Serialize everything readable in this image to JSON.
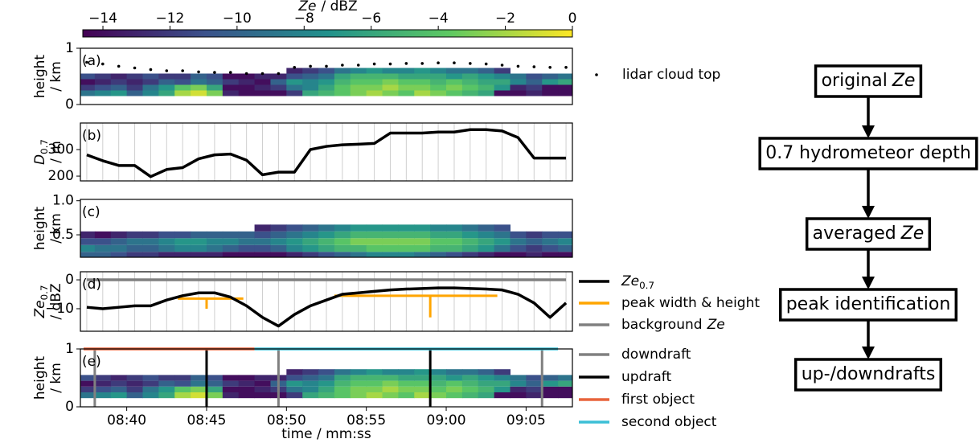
{
  "chart_data": [
    {
      "type": "colorbar",
      "label_italic": "Ze",
      "label": "/ dBZ",
      "colormap": "viridis",
      "xlim": [
        -14.6,
        0
      ],
      "xticks": [
        {
          "value": -14,
          "label": "−14"
        },
        {
          "value": -12,
          "label": "−12"
        },
        {
          "value": -10,
          "label": "−10"
        },
        {
          "value": -8,
          "label": "−8"
        },
        {
          "value": -6,
          "label": "−6"
        },
        {
          "value": -4,
          "label": "−4"
        },
        {
          "value": -2,
          "label": "−2"
        },
        0
      ]
    },
    {
      "type": "heatmap",
      "panel": "(a)",
      "ylabel": "height",
      "ylabel_unit": "/ km",
      "xlim": [
        37.1,
        67.9
      ],
      "ylim": [
        0,
        1
      ],
      "yticks": [
        0,
        1
      ],
      "x": [
        37.5,
        38.5,
        39.5,
        40.5,
        41.5,
        42.5,
        43.5,
        44.5,
        45.5,
        46.5,
        47.5,
        48.5,
        49.5,
        50.5,
        51.5,
        52.5,
        53.5,
        54.5,
        55.5,
        56.5,
        57.5,
        58.5,
        59.5,
        60.5,
        61.5,
        62.5,
        63.5,
        64.5,
        65.5,
        66.5,
        67.5
      ],
      "y_edges": [
        0.15,
        0.25,
        0.35,
        0.45,
        0.55,
        0.65
      ],
      "z": [
        [
          -9,
          -8,
          -7,
          -10,
          -8,
          -6,
          -2,
          -1,
          -3,
          -13,
          -14,
          -14,
          -14,
          -12,
          -6,
          -5,
          -4,
          -3,
          -2,
          -3,
          -4,
          -2,
          -3,
          -4,
          -5,
          -6,
          -14,
          -14,
          -13,
          -14,
          -14
        ],
        [
          -12,
          -11,
          -10,
          -12,
          -9,
          -7,
          -4,
          -3,
          -6,
          -14,
          -14,
          -13,
          -12,
          -9,
          -8,
          -6,
          -4,
          -3,
          -3,
          -2,
          -3,
          -3,
          -4,
          -3,
          -4,
          -5,
          -7,
          -13,
          -12,
          -14,
          -14
        ],
        [
          -14,
          -13,
          -12,
          -13,
          -12,
          -10,
          -11,
          -9,
          -10,
          -12,
          -13,
          -14,
          -10,
          -7,
          -8,
          -7,
          -5,
          -4,
          -4,
          -3,
          -4,
          -4,
          -5,
          -4,
          -5,
          -6,
          -6,
          -8,
          -10,
          -7,
          -6
        ],
        [
          -11,
          -12,
          -13,
          -12,
          -11,
          -12,
          -12,
          -10,
          -11,
          -14,
          -14,
          -13,
          -13,
          -11,
          -10,
          -9,
          -6,
          -5,
          -5,
          -5,
          -6,
          -6,
          -6,
          -7,
          -6,
          -7,
          -8,
          -9,
          -11,
          -10,
          -9
        ],
        [
          null,
          null,
          null,
          null,
          null,
          null,
          null,
          null,
          null,
          null,
          null,
          null,
          null,
          -13,
          -12,
          -11,
          -9,
          -8,
          -7,
          -8,
          -8,
          -7,
          -8,
          -9,
          -9,
          -10,
          -12,
          null,
          null,
          null,
          null
        ]
      ],
      "series": [
        {
          "name": "lidar cloud top",
          "color": "#000000",
          "values": [
            0.75,
            0.72,
            0.68,
            0.65,
            0.62,
            0.6,
            0.6,
            0.58,
            0.57,
            0.57,
            0.55,
            0.55,
            0.55,
            0.66,
            0.68,
            0.68,
            0.7,
            0.7,
            0.72,
            0.72,
            0.73,
            0.73,
            0.74,
            0.74,
            0.73,
            0.72,
            0.7,
            0.68,
            0.67,
            0.66,
            0.66
          ]
        }
      ]
    },
    {
      "type": "line",
      "panel": "(b)",
      "ylabel_italic": "D",
      "ylabel_sub": "0.7",
      "ylabel_unit": "/ m",
      "xlim": [
        37.1,
        67.9
      ],
      "ylim": [
        182,
        400
      ],
      "yticks": [
        200,
        300
      ],
      "x": [
        37.5,
        38.5,
        39.5,
        40.5,
        41.5,
        42.5,
        43.5,
        44.5,
        45.5,
        46.5,
        47.5,
        48.5,
        49.5,
        50.5,
        51.5,
        52.5,
        53.5,
        54.5,
        55.5,
        56.5,
        57.5,
        58.5,
        59.5,
        60.5,
        61.5,
        62.5,
        63.5,
        64.5,
        65.5,
        66.5,
        67.5
      ],
      "series": [
        {
          "color": "#000000",
          "values": [
            280,
            258,
            240,
            240,
            198,
            225,
            232,
            265,
            280,
            283,
            260,
            205,
            215,
            215,
            300,
            312,
            318,
            320,
            323,
            362,
            362,
            362,
            366,
            366,
            375,
            375,
            370,
            345,
            268,
            268,
            268
          ]
        }
      ]
    },
    {
      "type": "heatmap",
      "panel": "(c)",
      "ylabel": "height",
      "ylabel_unit": "/ km",
      "xlim": [
        37.1,
        67.9
      ],
      "ylim": [
        0.17,
        1.02
      ],
      "yticks": [
        0.5,
        {
          "value": 1,
          "label": "1.0"
        }
      ],
      "x": [
        37.5,
        38.5,
        39.5,
        40.5,
        41.5,
        42.5,
        43.5,
        44.5,
        45.5,
        46.5,
        47.5,
        48.5,
        49.5,
        50.5,
        51.5,
        52.5,
        53.5,
        54.5,
        55.5,
        56.5,
        57.5,
        58.5,
        59.5,
        60.5,
        61.5,
        62.5,
        63.5,
        64.5,
        65.5,
        66.5,
        67.5
      ],
      "y_edges": [
        0.15,
        0.25,
        0.35,
        0.45,
        0.55,
        0.65
      ],
      "z": [
        [
          -10,
          -10,
          -11,
          -12,
          -12,
          -13,
          -13,
          -13,
          -13,
          -14,
          -14,
          -14,
          -14,
          -13,
          -12,
          -11,
          -10,
          -9,
          -8,
          -8,
          -8,
          -9,
          -10,
          -11,
          -12,
          -13,
          -14,
          -14,
          -13,
          -14,
          -14
        ],
        [
          -8,
          -9,
          -9,
          -10,
          -10,
          -9,
          -8,
          -8,
          -9,
          -10,
          -11,
          -11,
          -10,
          -8,
          -7,
          -6,
          -5,
          -5,
          -4,
          -4,
          -4,
          -4,
          -5,
          -5,
          -6,
          -7,
          -9,
          -11,
          -12,
          -11,
          -10
        ],
        [
          -11,
          -11,
          -10,
          -9,
          -9,
          -8,
          -7,
          -7,
          -8,
          -8,
          -9,
          -9,
          -8,
          -7,
          -6,
          -5,
          -4,
          -3,
          -3,
          -3,
          -3,
          -3,
          -4,
          -4,
          -5,
          -6,
          -7,
          -9,
          -10,
          -9,
          -8
        ],
        [
          -13,
          -14,
          -13,
          -12,
          -12,
          -11,
          -11,
          -10,
          -10,
          -10,
          -10,
          -11,
          -10,
          -9,
          -8,
          -7,
          -6,
          -5,
          -5,
          -5,
          -5,
          -5,
          -6,
          -6,
          -7,
          -8,
          -9,
          -11,
          -12,
          -11,
          -11
        ],
        [
          null,
          null,
          null,
          null,
          null,
          null,
          null,
          null,
          null,
          null,
          null,
          -13,
          -12,
          -11,
          -10,
          -9,
          -8,
          -7,
          -7,
          -7,
          -7,
          -7,
          -8,
          -8,
          -9,
          -10,
          -11,
          null,
          null,
          null,
          null
        ]
      ]
    },
    {
      "type": "line",
      "panel": "(d)",
      "ylabel_italic": "Ze",
      "ylabel_sub": "0.7",
      "ylabel_unit": "/ dBZ",
      "xlim": [
        37.1,
        67.9
      ],
      "ylim": [
        -17.8,
        2.8
      ],
      "yticks": [
        {
          "value": -10,
          "label": "−10"
        },
        0
      ],
      "x": [
        37.5,
        38.5,
        39.5,
        40.5,
        41.5,
        42.5,
        43.5,
        44.5,
        45.5,
        46.5,
        47.5,
        48.5,
        49.5,
        50.5,
        51.5,
        52.5,
        53.5,
        54.5,
        55.5,
        56.5,
        57.5,
        58.5,
        59.5,
        60.5,
        61.5,
        62.5,
        63.5,
        64.5,
        65.5,
        66.5,
        67.5
      ],
      "series": [
        {
          "name": "Ze",
          "name_sub": "0.7",
          "color": "#000000",
          "values": [
            -9.5,
            -10,
            -9.5,
            -9,
            -9,
            -7,
            -5.5,
            -4.5,
            -4.5,
            -6,
            -9,
            -13,
            -16,
            -12,
            -9,
            -7,
            -5,
            -4.5,
            -4,
            -3.5,
            -3.2,
            -3,
            -2.8,
            -2.8,
            -3,
            -3.2,
            -3.5,
            -5,
            -8,
            -13,
            -8
          ]
        }
      ],
      "peaks": {
        "name": "peak width & height",
        "color": "#ffa500",
        "items": [
          {
            "x": 45,
            "y": -6.5,
            "left": 43.2,
            "right": 47.3,
            "bottom": -10
          },
          {
            "x": 59,
            "y": -5.5,
            "left": 53,
            "right": 63.2,
            "bottom": -13
          }
        ]
      },
      "background": {
        "name": "background",
        "name_italic": "Ze",
        "color": "#808080",
        "value": 0
      }
    },
    {
      "type": "heatmap-events",
      "panel": "(e)",
      "ylabel": "height",
      "ylabel_unit": "/ km",
      "xlim": [
        37.1,
        67.9
      ],
      "ylim": [
        0,
        1
      ],
      "yticks": [
        0,
        1
      ],
      "xlabel": "time / mm:ss",
      "xticks": [
        {
          "value": 40,
          "label": "08:40"
        },
        {
          "value": 45,
          "label": "08:45"
        },
        {
          "value": 50,
          "label": "08:50"
        },
        {
          "value": 55,
          "label": "08:55"
        },
        {
          "value": 60,
          "label": "09:00"
        },
        {
          "value": 65,
          "label": "09:05"
        }
      ],
      "downdraft": {
        "name": "downdraft",
        "color": "#808080",
        "x": [
          38,
          49.5,
          66
        ]
      },
      "updraft": {
        "name": "updraft",
        "color": "#000000",
        "x": [
          45,
          59
        ]
      },
      "objects": [
        {
          "name": "first object",
          "color": "#e8643c",
          "start": 37.3,
          "end": 48
        },
        {
          "name": "second object",
          "color": "#3cbfd6",
          "start": 48,
          "end": 67
        }
      ]
    }
  ],
  "flowchart": {
    "nodes": [
      {
        "text": "original",
        "italic": "Ze"
      },
      {
        "text": "0.7 hydrometeor depth"
      },
      {
        "text": "averaged",
        "italic": "Ze"
      },
      {
        "text": "peak identification"
      },
      {
        "text": "up-/downdrafts"
      }
    ]
  }
}
